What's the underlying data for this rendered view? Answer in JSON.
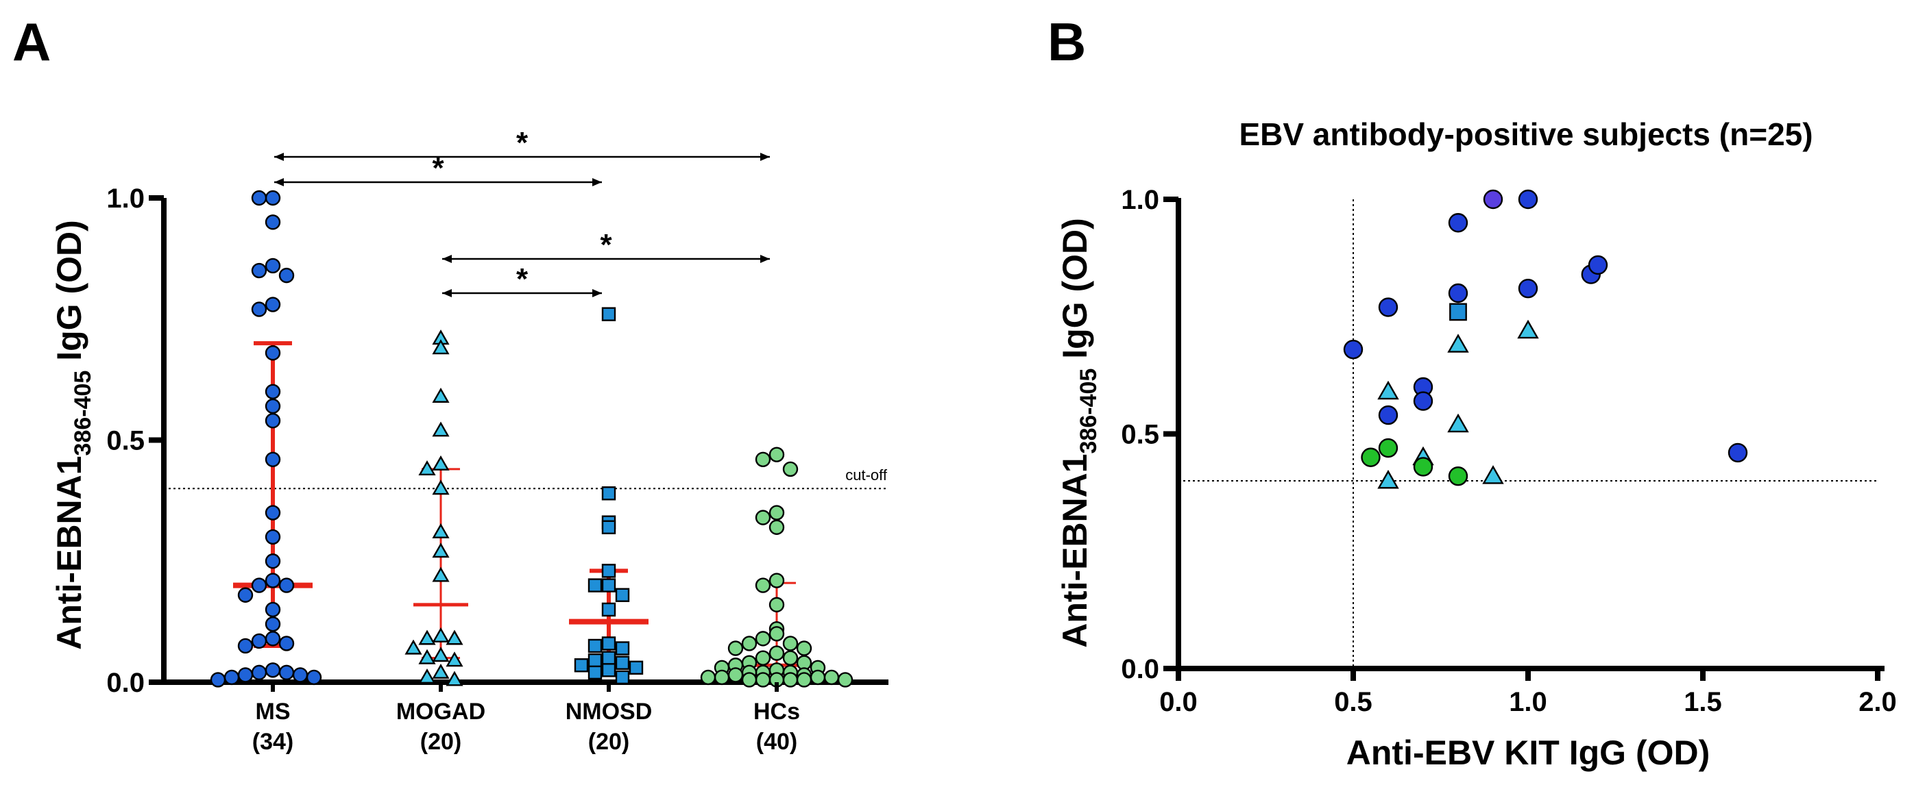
{
  "chart_data": [
    {
      "panel": "A",
      "type": "scatter",
      "ylabel_main": "Anti-EBNA1",
      "ylabel_sub": "386-405",
      "ylabel_end": " IgG (OD)",
      "ylim": [
        0,
        1.0
      ],
      "yticks": [
        "0.0",
        "0.5",
        "1.0"
      ],
      "cutoff": 0.4,
      "cutoff_label": "cut-off",
      "significance_marker": "*",
      "comparisons": [
        {
          "from": "MS",
          "to": "HCs"
        },
        {
          "from": "MS",
          "to": "NMOSD"
        },
        {
          "from": "MOGAD",
          "to": "HCs"
        },
        {
          "from": "MOGAD",
          "to": "NMOSD"
        }
      ],
      "groups": [
        {
          "name": "MS",
          "n": "(34)",
          "marker": "circle",
          "color": "#1f63d8",
          "median": 0.2,
          "iqr": [
            0.075,
            0.7
          ],
          "thick": true,
          "values": [
            1.0,
            1.0,
            0.95,
            0.86,
            0.85,
            0.84,
            0.78,
            0.77,
            0.68,
            0.6,
            0.57,
            0.54,
            0.46,
            0.35,
            0.3,
            0.25,
            0.21,
            0.2,
            0.2,
            0.18,
            0.15,
            0.12,
            0.09,
            0.085,
            0.08,
            0.075,
            0.025,
            0.02,
            0.02,
            0.015,
            0.015,
            0.01,
            0.01,
            0.005
          ]
        },
        {
          "name": "MOGAD",
          "n": "(20)",
          "marker": "triangle",
          "color": "#3cc4e6",
          "median": 0.16,
          "iqr": [
            0.05,
            0.44
          ],
          "thick": false,
          "values": [
            0.71,
            0.69,
            0.59,
            0.52,
            0.45,
            0.44,
            0.4,
            0.31,
            0.27,
            0.22,
            0.095,
            0.09,
            0.09,
            0.07,
            0.055,
            0.05,
            0.045,
            0.02,
            0.01,
            0.005
          ]
        },
        {
          "name": "NMOSD",
          "n": "(20)",
          "marker": "square",
          "color": "#1f8fd8",
          "median": 0.125,
          "iqr": [
            0.03,
            0.23
          ],
          "thick": true,
          "values": [
            0.76,
            0.39,
            0.33,
            0.32,
            0.23,
            0.2,
            0.2,
            0.18,
            0.15,
            0.08,
            0.075,
            0.07,
            0.05,
            0.045,
            0.04,
            0.035,
            0.03,
            0.025,
            0.02,
            0.01
          ]
        },
        {
          "name": "HCs",
          "n": "(40)",
          "marker": "circle",
          "color": "#7ed78a",
          "median": 0.035,
          "iqr": [
            0.02,
            0.205
          ],
          "thick": false,
          "values": [
            0.47,
            0.46,
            0.44,
            0.35,
            0.34,
            0.32,
            0.21,
            0.2,
            0.16,
            0.11,
            0.1,
            0.09,
            0.08,
            0.08,
            0.07,
            0.07,
            0.06,
            0.05,
            0.05,
            0.04,
            0.04,
            0.035,
            0.03,
            0.03,
            0.025,
            0.02,
            0.02,
            0.02,
            0.015,
            0.015,
            0.01,
            0.01,
            0.01,
            0.01,
            0.005,
            0.005,
            0.005,
            0.005,
            0.005,
            0.005
          ]
        }
      ]
    },
    {
      "panel": "B",
      "type": "scatter",
      "title": "EBV antibody-positive subjects (n=25)",
      "xlabel": "Anti-EBV KIT IgG (OD)",
      "ylabel_main": "Anti-EBNA1",
      "ylabel_sub": "386-405",
      "ylabel_end": " IgG (OD)",
      "xlim": [
        0,
        2.0
      ],
      "ylim": [
        0,
        1.0
      ],
      "xticks": [
        "0.0",
        "0.5",
        "1.0",
        "1.5",
        "2.0"
      ],
      "yticks": [
        "0.0",
        "0.5",
        "1.0"
      ],
      "cutoff_x": 0.5,
      "cutoff_y": 0.4,
      "points": [
        {
          "x": 0.5,
          "y": 0.68,
          "marker": "circle",
          "color": "#1f3fd8"
        },
        {
          "x": 0.6,
          "y": 0.77,
          "marker": "circle",
          "color": "#1f3fd8"
        },
        {
          "x": 0.6,
          "y": 0.54,
          "marker": "circle",
          "color": "#1f3fd8"
        },
        {
          "x": 0.7,
          "y": 0.6,
          "marker": "circle",
          "color": "#1f3fd8"
        },
        {
          "x": 0.7,
          "y": 0.57,
          "marker": "circle",
          "color": "#1f3fd8"
        },
        {
          "x": 0.8,
          "y": 0.95,
          "marker": "circle",
          "color": "#1f3fd8"
        },
        {
          "x": 0.8,
          "y": 0.8,
          "marker": "circle",
          "color": "#1f3fd8"
        },
        {
          "x": 0.9,
          "y": 1.0,
          "marker": "circle",
          "color": "#5a3fe0"
        },
        {
          "x": 1.0,
          "y": 1.0,
          "marker": "circle",
          "color": "#1f3fd8"
        },
        {
          "x": 1.0,
          "y": 0.81,
          "marker": "circle",
          "color": "#1f3fd8"
        },
        {
          "x": 1.18,
          "y": 0.84,
          "marker": "circle",
          "color": "#1f3fd8"
        },
        {
          "x": 1.2,
          "y": 0.86,
          "marker": "circle",
          "color": "#1f3fd8"
        },
        {
          "x": 1.6,
          "y": 0.46,
          "marker": "circle",
          "color": "#1f3fd8"
        },
        {
          "x": 0.8,
          "y": 0.76,
          "marker": "square",
          "color": "#1f8fd8"
        },
        {
          "x": 0.6,
          "y": 0.59,
          "marker": "triangle",
          "color": "#3cc4e6"
        },
        {
          "x": 0.6,
          "y": 0.4,
          "marker": "triangle",
          "color": "#3cc4e6"
        },
        {
          "x": 0.7,
          "y": 0.45,
          "marker": "triangle",
          "color": "#3cc4e6"
        },
        {
          "x": 0.8,
          "y": 0.69,
          "marker": "triangle",
          "color": "#3cc4e6"
        },
        {
          "x": 0.8,
          "y": 0.52,
          "marker": "triangle",
          "color": "#3cc4e6"
        },
        {
          "x": 0.9,
          "y": 0.41,
          "marker": "triangle",
          "color": "#3cc4e6"
        },
        {
          "x": 1.0,
          "y": 0.72,
          "marker": "triangle",
          "color": "#3cc4e6"
        },
        {
          "x": 0.55,
          "y": 0.45,
          "marker": "circle",
          "color": "#22c02a"
        },
        {
          "x": 0.6,
          "y": 0.47,
          "marker": "circle",
          "color": "#22c02a"
        },
        {
          "x": 0.7,
          "y": 0.43,
          "marker": "circle",
          "color": "#22c02a"
        },
        {
          "x": 0.8,
          "y": 0.41,
          "marker": "circle",
          "color": "#22c02a"
        }
      ]
    }
  ],
  "colors": {
    "axis": "#000000",
    "summary_line": "#e8251a"
  }
}
